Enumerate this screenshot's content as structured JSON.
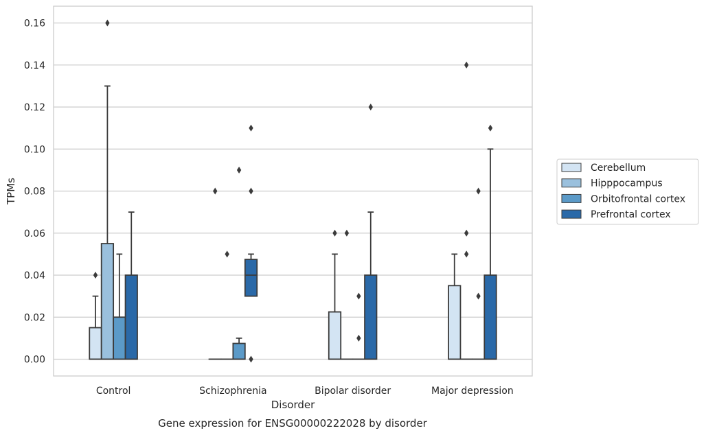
{
  "chart_data": {
    "type": "box",
    "caption": "Gene expression for ENSG00000222028 by disorder",
    "xlabel": "Disorder",
    "ylabel": "TPMs",
    "ylim": [
      -0.008,
      0.168
    ],
    "yticks": [
      0.0,
      0.02,
      0.04,
      0.06,
      0.08,
      0.1,
      0.12,
      0.14,
      0.16
    ],
    "ytick_labels": [
      "0.00",
      "0.02",
      "0.04",
      "0.06",
      "0.08",
      "0.10",
      "0.12",
      "0.14",
      "0.16"
    ],
    "grid": "horizontal",
    "legend_position": "right",
    "categories": [
      "Control",
      "Schizophrenia",
      "Bipolar disorder",
      "Major depression"
    ],
    "series": [
      {
        "name": "Cerebellum",
        "color": "#d3e4f3",
        "boxes": [
          {
            "q1": 0,
            "median": 0,
            "q3": 0.015,
            "whisker_low": 0,
            "whisker_high": 0.03,
            "outliers": [
              0.04
            ]
          },
          {
            "q1": 0,
            "median": 0,
            "q3": 0,
            "whisker_low": 0,
            "whisker_high": 0,
            "outliers": [
              0.08
            ]
          },
          {
            "q1": 0,
            "median": 0,
            "q3": 0.0225,
            "whisker_low": 0,
            "whisker_high": 0.05,
            "outliers": [
              0.06
            ]
          },
          {
            "q1": 0,
            "median": 0,
            "q3": 0.035,
            "whisker_low": 0,
            "whisker_high": 0.05,
            "outliers": []
          }
        ]
      },
      {
        "name": "Hipppocampus",
        "color": "#9ac0dd",
        "boxes": [
          {
            "q1": 0,
            "median": 0,
            "q3": 0.055,
            "whisker_low": 0,
            "whisker_high": 0.13,
            "outliers": [
              0.16
            ]
          },
          {
            "q1": 0,
            "median": 0,
            "q3": 0,
            "whisker_low": 0,
            "whisker_high": 0,
            "outliers": [
              0.05
            ]
          },
          {
            "q1": 0,
            "median": 0,
            "q3": 0,
            "whisker_low": 0,
            "whisker_high": 0,
            "outliers": [
              0.06
            ]
          },
          {
            "q1": 0,
            "median": 0,
            "q3": 0,
            "whisker_low": 0,
            "whisker_high": 0,
            "outliers": [
              0.05,
              0.06,
              0.14
            ]
          }
        ]
      },
      {
        "name": "Orbitofrontal cortex",
        "color": "#5b9ac8",
        "boxes": [
          {
            "q1": 0,
            "median": 0,
            "q3": 0.02,
            "whisker_low": 0,
            "whisker_high": 0.05,
            "outliers": []
          },
          {
            "q1": 0,
            "median": 0,
            "q3": 0.0075,
            "whisker_low": 0,
            "whisker_high": 0.01,
            "outliers": [
              0.09
            ]
          },
          {
            "q1": 0,
            "median": 0,
            "q3": 0,
            "whisker_low": 0,
            "whisker_high": 0,
            "outliers": [
              0.01,
              0.03
            ]
          },
          {
            "q1": 0,
            "median": 0,
            "q3": 0,
            "whisker_low": 0,
            "whisker_high": 0,
            "outliers": [
              0.03,
              0.08
            ]
          }
        ]
      },
      {
        "name": "Prefrontal cortex",
        "color": "#2a69a8",
        "boxes": [
          {
            "q1": 0,
            "median": 0,
            "q3": 0.04,
            "whisker_low": 0,
            "whisker_high": 0.07,
            "outliers": []
          },
          {
            "q1": 0.03,
            "median": 0.04,
            "q3": 0.0475,
            "whisker_low": 0.03,
            "whisker_high": 0.05,
            "outliers": [
              0,
              0.08,
              0.11
            ]
          },
          {
            "q1": 0,
            "median": 0,
            "q3": 0.04,
            "whisker_low": 0,
            "whisker_high": 0.07,
            "outliers": [
              0.12
            ]
          },
          {
            "q1": 0,
            "median": 0,
            "q3": 0.04,
            "whisker_low": 0,
            "whisker_high": 0.1,
            "outliers": [
              0.11
            ]
          }
        ]
      }
    ]
  }
}
